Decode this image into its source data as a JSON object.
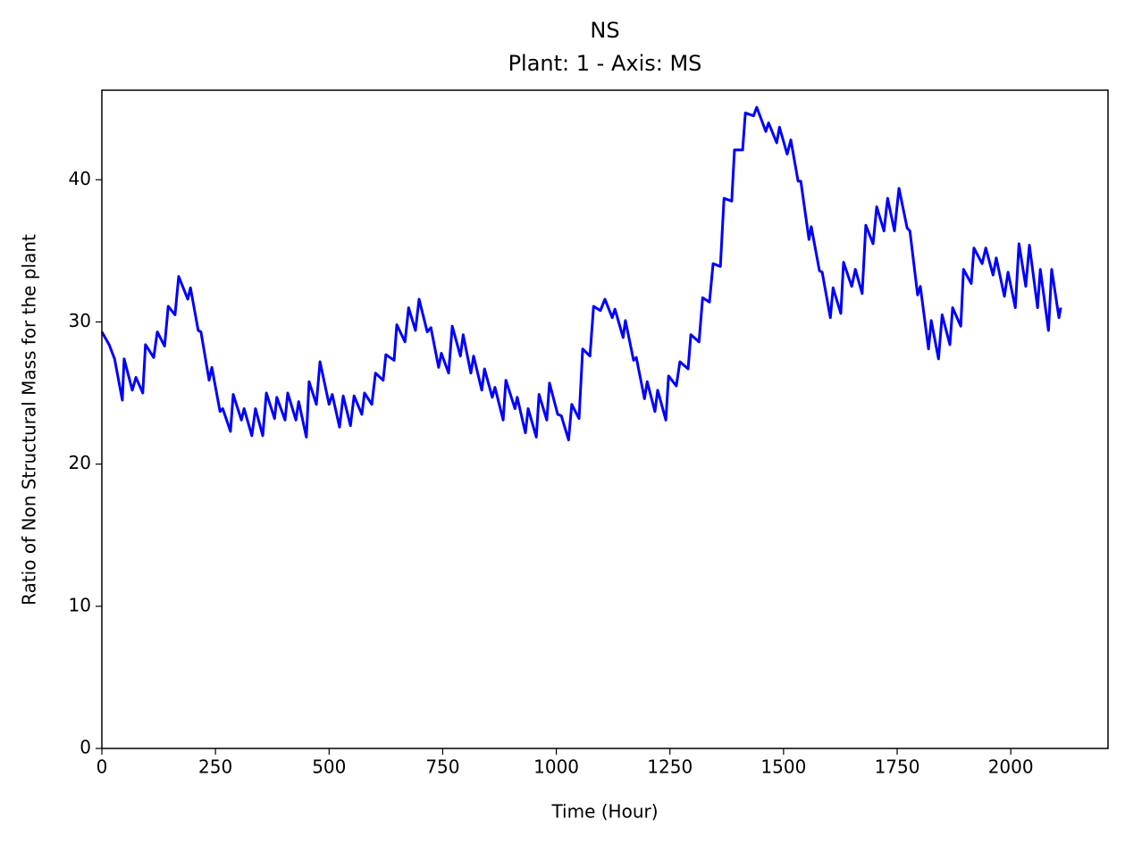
{
  "chart_data": {
    "type": "line",
    "title": "NS",
    "subtitle": "Plant: 1 - Axis: MS",
    "x_label": "Time (Hour)",
    "y_label": "Ratio of Non Structural Mass for the plant",
    "xlim": [
      0,
      2214
    ],
    "ylim": [
      0,
      46.3
    ],
    "xticks": [
      0,
      250,
      500,
      750,
      1000,
      1250,
      1500,
      1750,
      2000
    ],
    "yticks": [
      0,
      10,
      20,
      30,
      40
    ],
    "grid": false,
    "series": [
      {
        "name": "NS",
        "color": "#0000ff",
        "x": [
          0,
          16,
          28,
          45,
          49,
          67,
          75,
          90,
          96,
          114,
          122,
          138,
          146,
          161,
          169,
          189,
          195,
          212,
          218,
          236,
          242,
          260,
          266,
          283,
          289,
          307,
          313,
          330,
          338,
          354,
          362,
          380,
          385,
          403,
          409,
          427,
          433,
          450,
          456,
          472,
          480,
          500,
          507,
          523,
          531,
          547,
          555,
          572,
          578,
          594,
          602,
          619,
          625,
          643,
          649,
          667,
          675,
          690,
          698,
          716,
          724,
          741,
          747,
          763,
          771,
          789,
          795,
          812,
          818,
          836,
          842,
          859,
          865,
          883,
          889,
          909,
          914,
          932,
          938,
          956,
          962,
          979,
          985,
          1003,
          1011,
          1027,
          1034,
          1050,
          1058,
          1074,
          1082,
          1097,
          1107,
          1123,
          1129,
          1147,
          1152,
          1170,
          1176,
          1194,
          1200,
          1217,
          1223,
          1241,
          1247,
          1264,
          1272,
          1290,
          1296,
          1314,
          1322,
          1337,
          1345,
          1361,
          1369,
          1386,
          1392,
          1410,
          1416,
          1434,
          1441,
          1461,
          1467,
          1485,
          1491,
          1508,
          1516,
          1532,
          1538,
          1556,
          1561,
          1579,
          1585,
          1603,
          1609,
          1626,
          1632,
          1650,
          1658,
          1673,
          1681,
          1697,
          1705,
          1721,
          1729,
          1744,
          1754,
          1772,
          1778,
          1795,
          1801,
          1819,
          1825,
          1841,
          1849,
          1866,
          1872,
          1890,
          1896,
          1913,
          1919,
          1937,
          1945,
          1961,
          1968,
          1986,
          1994,
          2010,
          2018,
          2033,
          2041,
          2059,
          2065,
          2083,
          2090,
          2106,
          2110
        ],
        "values": [
          29.3,
          28.4,
          27.4,
          24.5,
          27.4,
          25.2,
          26.1,
          25.0,
          28.4,
          27.5,
          29.3,
          28.3,
          31.1,
          30.5,
          33.2,
          31.6,
          32.4,
          29.4,
          29.3,
          25.9,
          26.8,
          23.7,
          23.9,
          22.3,
          24.9,
          23.1,
          23.9,
          22.0,
          23.9,
          22.0,
          25.0,
          23.2,
          24.7,
          23.1,
          25.0,
          23.1,
          24.4,
          21.9,
          25.8,
          24.2,
          27.2,
          24.2,
          24.9,
          22.6,
          24.8,
          22.7,
          24.8,
          23.5,
          25.0,
          24.2,
          26.4,
          25.9,
          27.7,
          27.3,
          29.8,
          28.6,
          31.0,
          29.4,
          31.6,
          29.3,
          29.6,
          26.8,
          27.8,
          26.4,
          29.7,
          27.6,
          29.1,
          26.4,
          27.6,
          25.2,
          26.7,
          24.7,
          25.4,
          23.1,
          25.9,
          23.9,
          24.7,
          22.2,
          23.9,
          21.9,
          24.9,
          23.1,
          25.7,
          23.5,
          23.4,
          21.7,
          24.2,
          23.2,
          28.1,
          27.6,
          31.1,
          30.8,
          31.6,
          30.3,
          30.9,
          28.9,
          30.1,
          27.3,
          27.5,
          24.6,
          25.8,
          23.7,
          25.2,
          23.1,
          26.2,
          25.5,
          27.2,
          26.7,
          29.1,
          28.6,
          31.7,
          31.4,
          34.1,
          33.9,
          38.7,
          38.5,
          42.1,
          42.1,
          44.7,
          44.5,
          45.1,
          43.4,
          44.0,
          42.6,
          43.7,
          41.8,
          42.8,
          39.9,
          39.9,
          35.8,
          36.7,
          33.6,
          33.5,
          30.3,
          32.4,
          30.6,
          34.2,
          32.5,
          33.7,
          32.0,
          36.8,
          35.5,
          38.1,
          36.4,
          38.7,
          36.4,
          39.4,
          36.6,
          36.4,
          31.9,
          32.5,
          28.1,
          30.1,
          27.4,
          30.5,
          28.4,
          31.0,
          29.7,
          33.7,
          32.7,
          35.2,
          34.1,
          35.2,
          33.3,
          34.5,
          31.8,
          33.5,
          31.0,
          35.5,
          32.5,
          35.4,
          31.0,
          33.7,
          29.4,
          33.7,
          30.3,
          31.0
        ]
      }
    ]
  }
}
